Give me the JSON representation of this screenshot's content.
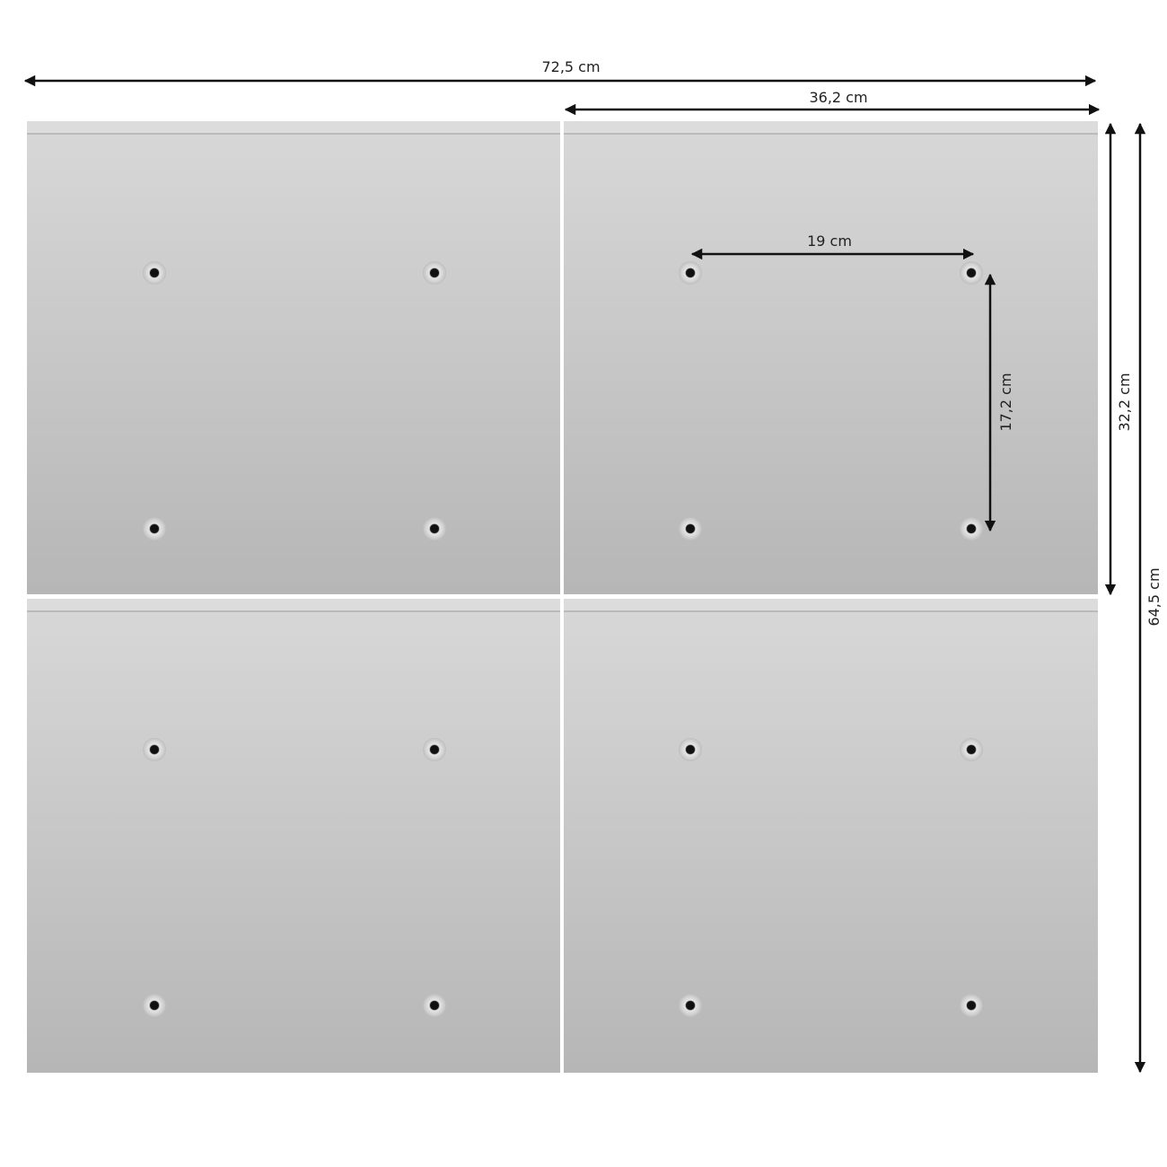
{
  "dimensions": {
    "total_width": "72,5 cm",
    "panel_width": "36,2 cm",
    "hole_spacing_horizontal": "19 cm",
    "hole_spacing_vertical": "17,2 cm",
    "panel_height": "32,2 cm",
    "total_height": "64,5 cm"
  },
  "colors": {
    "panel_top": "#d8d8d8",
    "panel_bottom": "#b6b6b6",
    "arrow": "#111111"
  }
}
